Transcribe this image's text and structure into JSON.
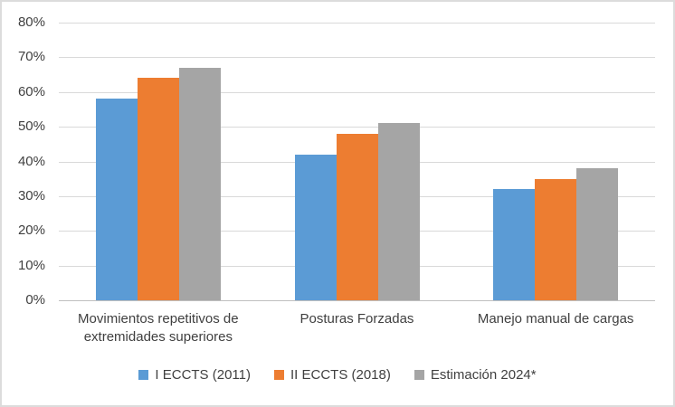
{
  "chart_data": {
    "type": "bar",
    "categories": [
      "Movimientos repetitivos de extremidades superiores",
      "Posturas Forzadas",
      "Manejo manual de cargas"
    ],
    "series": [
      {
        "name": "I ECCTS (2011)",
        "color": "#5B9BD5",
        "values": [
          58,
          42,
          32
        ]
      },
      {
        "name": "II ECCTS (2018)",
        "color": "#ED7D31",
        "values": [
          64,
          48,
          35
        ]
      },
      {
        "name": "Estimación 2024*",
        "color": "#A5A5A5",
        "values": [
          67,
          51,
          38
        ]
      }
    ],
    "title": "",
    "xlabel": "",
    "ylabel": "",
    "ylim": [
      0,
      80
    ],
    "ytick_step": 10,
    "ytick_labels": [
      "0%",
      "10%",
      "20%",
      "30%",
      "40%",
      "50%",
      "60%",
      "70%",
      "80%"
    ],
    "grid": true,
    "legend_position": "bottom",
    "colors": {
      "gridline": "#D9D9D9",
      "axis_line": "#BFBFBF",
      "text": "#404040",
      "frame_border": "#DCDCDC"
    }
  }
}
